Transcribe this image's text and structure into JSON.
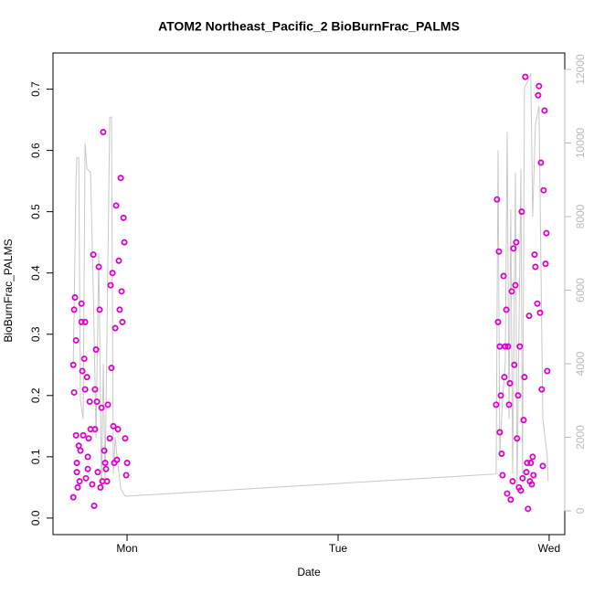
{
  "chart_data": {
    "type": "scatter",
    "title": "ATOM2 Northeast_Pacific_2 BioBurnFrac_PALMS",
    "xlabel": "Date",
    "ylabel": "BioBurnFrac_PALMS",
    "xlim": [
      -0.351,
      2.074
    ],
    "xticks": [
      {
        "value": 0,
        "label": "Mon"
      },
      {
        "value": 1,
        "label": "Tue"
      },
      {
        "value": 2,
        "label": "Wed"
      }
    ],
    "ylim": [
      -0.027,
      0.759
    ],
    "yticks": [
      {
        "value": 0,
        "label": "0.0"
      },
      0.1,
      0.2,
      0.3,
      0.4,
      0.5,
      0.6,
      0.7
    ],
    "y2lim": [
      -646,
      12447
    ],
    "y2ticks": [
      0,
      2000,
      4000,
      6000,
      8000,
      10000,
      12000
    ],
    "y2tick_color": "#bbbbbb",
    "series": [
      {
        "type": "scatter",
        "color": "#dd00cc",
        "x": [
          -0.255,
          -0.255,
          -0.251,
          -0.251,
          -0.247,
          -0.242,
          -0.242,
          -0.238,
          -0.238,
          -0.234,
          -0.229,
          -0.225,
          -0.221,
          -0.216,
          -0.216,
          -0.212,
          -0.208,
          -0.203,
          -0.199,
          -0.199,
          -0.195,
          -0.19,
          -0.186,
          -0.186,
          -0.182,
          -0.177,
          -0.173,
          -0.165,
          -0.16,
          -0.156,
          -0.152,
          -0.152,
          -0.147,
          -0.143,
          -0.139,
          -0.134,
          -0.13,
          -0.126,
          -0.121,
          -0.117,
          -0.113,
          -0.108,
          -0.104,
          -0.1,
          -0.095,
          -0.091,
          -0.082,
          -0.078,
          -0.074,
          -0.069,
          -0.065,
          -0.061,
          -0.056,
          -0.052,
          -0.048,
          -0.043,
          -0.039,
          -0.035,
          -0.03,
          -0.026,
          -0.022,
          -0.017,
          -0.013,
          -0.009,
          -0.004,
          0,
          1.749,
          1.753,
          1.758,
          1.762,
          1.766,
          1.766,
          1.771,
          1.775,
          1.779,
          1.784,
          1.788,
          1.792,
          1.797,
          1.801,
          1.805,
          1.81,
          1.814,
          1.818,
          1.823,
          1.827,
          1.831,
          1.835,
          1.84,
          1.844,
          1.848,
          1.853,
          1.857,
          1.861,
          1.866,
          1.87,
          1.874,
          1.879,
          1.883,
          1.887,
          1.892,
          1.896,
          1.9,
          1.905,
          1.909,
          1.913,
          1.918,
          1.922,
          1.926,
          1.931,
          1.935,
          1.944,
          1.948,
          1.952,
          1.957,
          1.961,
          1.965,
          1.97,
          1.974,
          1.978,
          1.983,
          1.987,
          1.991
        ],
        "values": [
          0.034,
          0.25,
          0.205,
          0.34,
          0.36,
          0.29,
          0.135,
          0.09,
          0.075,
          0.05,
          0.118,
          0.06,
          0.11,
          0.32,
          0.35,
          0.24,
          0.135,
          0.26,
          0.21,
          0.32,
          0.065,
          0.23,
          0.1,
          0.08,
          0.13,
          0.19,
          0.145,
          0.055,
          0.43,
          0.02,
          0.145,
          0.21,
          0.275,
          0.19,
          0.075,
          0.41,
          0.34,
          0.05,
          0.18,
          0.06,
          0.63,
          0.11,
          0.09,
          0.08,
          0.06,
          0.185,
          0.13,
          0.38,
          0.245,
          0.4,
          0.15,
          0.09,
          0.31,
          0.51,
          0.095,
          0.145,
          0.42,
          0.34,
          0.555,
          0.37,
          0.32,
          0.49,
          0.45,
          0.13,
          0.07,
          0.09,
          0.185,
          0.52,
          0.32,
          0.435,
          0.28,
          0.14,
          0.2,
          0.105,
          0.07,
          0.395,
          0.23,
          0.28,
          0.34,
          0.04,
          0.28,
          0.185,
          0.22,
          0.03,
          0.37,
          0.06,
          0.44,
          0.25,
          0.38,
          0.45,
          0.13,
          0.2,
          0.05,
          0.28,
          0.045,
          0.5,
          0.065,
          0.16,
          0.23,
          0.72,
          0.075,
          0.09,
          0.015,
          0.33,
          0.06,
          0.09,
          0.055,
          0.1,
          0.07,
          0.43,
          0.41,
          0.35,
          0.69,
          0.705,
          0.335,
          0.58,
          0.21,
          0.085,
          0.535,
          0.665,
          0.415,
          0.465,
          0.24
        ]
      },
      {
        "type": "line",
        "axis": "y2",
        "color": "#c8c8c8",
        "x": [
          -0.255,
          -0.242,
          -0.238,
          -0.229,
          -0.221,
          -0.208,
          -0.199,
          -0.19,
          -0.173,
          -0.16,
          -0.147,
          -0.134,
          -0.121,
          -0.113,
          -0.104,
          -0.082,
          -0.074,
          -0.065,
          -0.056,
          -0.048,
          -0.03,
          -0.009,
          0,
          1.749,
          1.758,
          1.766,
          1.779,
          1.792,
          1.801,
          1.81,
          1.818,
          1.827,
          1.84,
          1.848,
          1.866,
          1.874,
          1.883,
          1.9,
          1.913,
          1.922,
          1.935,
          1.952,
          1.97,
          1.991,
          1.995
        ],
        "values": [
          4000,
          9000,
          9600,
          9600,
          3000,
          2500,
          10000,
          9300,
          9200,
          6000,
          2000,
          7000,
          500,
          4000,
          800,
          10700,
          10700,
          1000,
          2000,
          1500,
          600,
          400,
          400,
          1000,
          9800,
          1500,
          3000,
          4000,
          10300,
          2500,
          8200,
          1000,
          9200,
          500,
          9300,
          1000,
          11500,
          11700,
          11900,
          8000,
          10500,
          11000,
          2500,
          1500,
          800
        ]
      }
    ]
  }
}
